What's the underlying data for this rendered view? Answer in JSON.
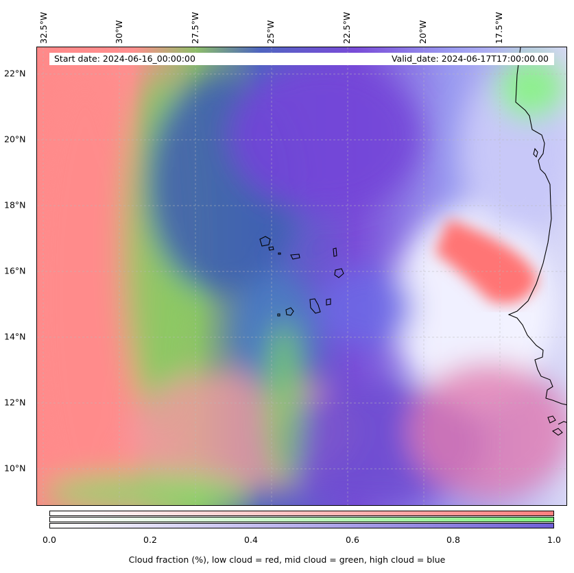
{
  "header": {
    "start_date": "Start date: 2024-06-16_00:00:00",
    "valid_date": "Valid_date: 2024-06-17T17:00:00.00"
  },
  "map": {
    "longitude_labels": [
      "32.5°W",
      "30°W",
      "27.5°W",
      "25°W",
      "22.5°W",
      "20°W",
      "17.5°W"
    ],
    "latitude_labels": [
      "22°N",
      "20°N",
      "18°N",
      "16°N",
      "14°N",
      "12°N",
      "10°N"
    ],
    "layer_colors": {
      "low_cloud": "#ff7f7f",
      "mid_cloud": "#7fef7f",
      "high_cloud": "#6f5fd8"
    }
  },
  "colorbar": {
    "ticks": [
      "0.0",
      "0.2",
      "0.4",
      "0.6",
      "0.8",
      "1.0"
    ],
    "label": "Cloud fraction (%), low cloud = red, mid cloud = green, high cloud = blue"
  }
}
